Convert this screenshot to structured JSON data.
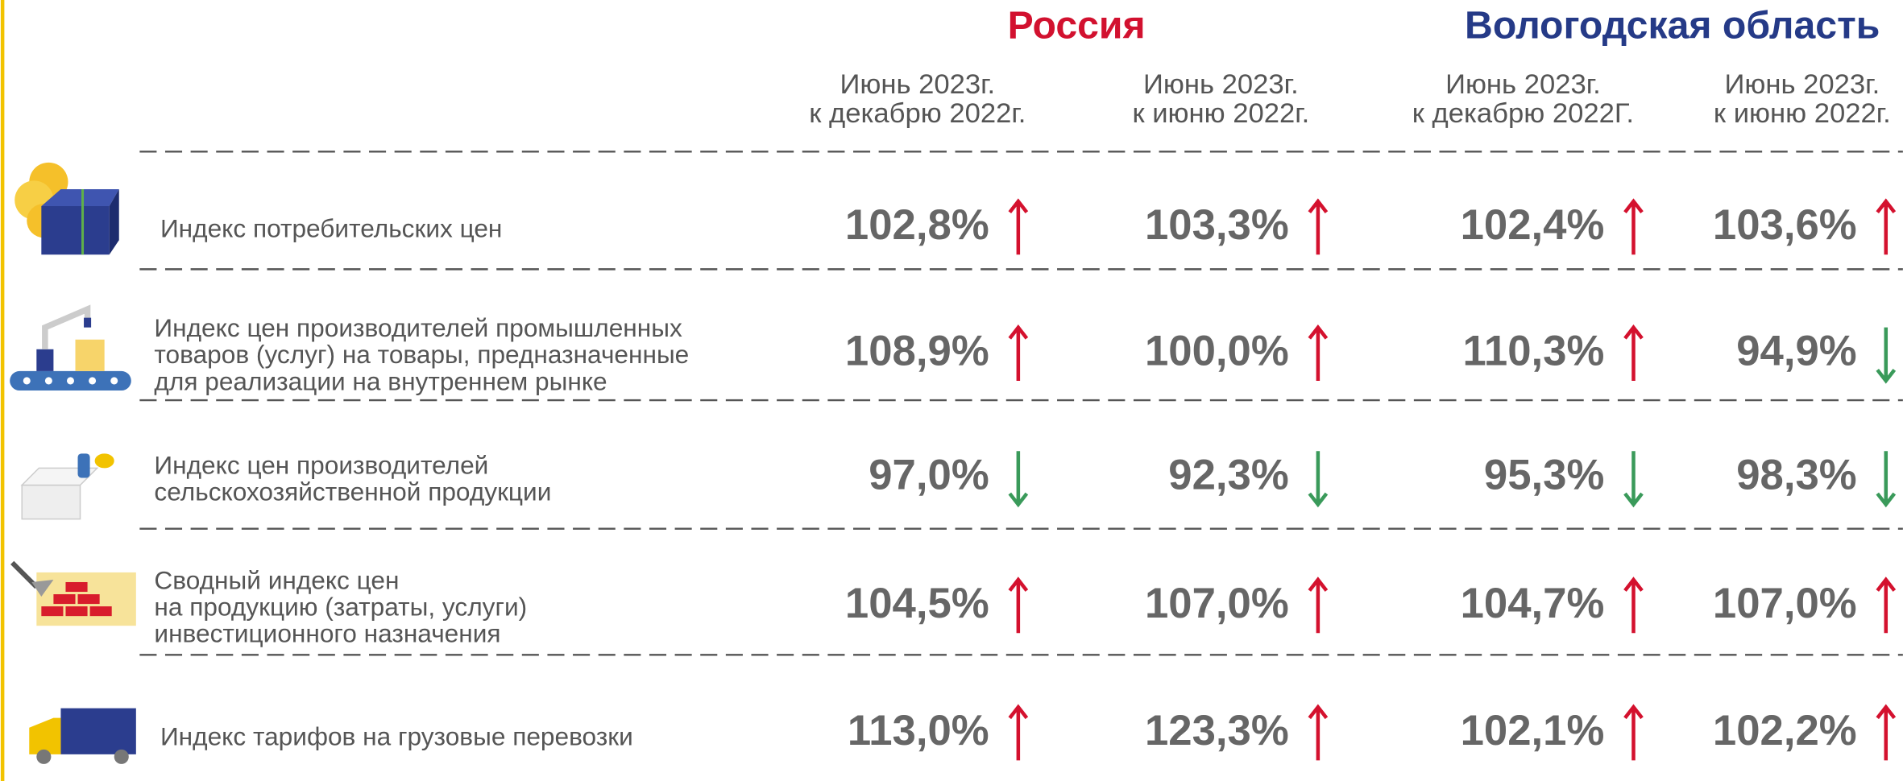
{
  "header": {
    "russia": "Россия",
    "region": "Вологодская область",
    "columns": [
      [
        "Июнь 2023г.",
        "к декабрю 2022г."
      ],
      [
        "Июнь 2023г.",
        "к июню 2022г."
      ],
      [
        "Июнь 2023г.",
        "к  декабрю 2022Г."
      ],
      [
        "Июнь 2023г.",
        "к июню 2022г."
      ]
    ]
  },
  "rows": [
    {
      "label": [
        "Индекс потребительских цен"
      ],
      "values": [
        "102,8%",
        "103,3%",
        "102,4%",
        "103,6%"
      ],
      "arrows": [
        "up",
        "up",
        "up",
        "up"
      ]
    },
    {
      "label": [
        "Индекс цен производителей промышленных",
        "товаров (услуг) на товары, предназначенные",
        "для реализации на внутреннем рынке"
      ],
      "values": [
        "108,9%",
        "100,0%",
        "110,3%",
        "94,9%"
      ],
      "arrows": [
        "up",
        "up",
        "up",
        "down"
      ]
    },
    {
      "label": [
        "Индекс цен производителей",
        "сельскохозяйственной продукции"
      ],
      "values": [
        "97,0%",
        "92,3%",
        "95,3%",
        "98,3%"
      ],
      "arrows": [
        "down",
        "down",
        "down",
        "down"
      ]
    },
    {
      "label": [
        "Сводный индекс цен",
        "на продукцию (затраты, услуги)",
        "инвестиционного назначения"
      ],
      "values": [
        "104,5%",
        "107,0%",
        "104,7%",
        "107,0%"
      ],
      "arrows": [
        "up",
        "up",
        "up",
        "up"
      ]
    },
    {
      "label": [
        "Индекс тарифов на грузовые перевозки"
      ],
      "values": [
        "113,0%",
        "123,3%",
        "102,1%",
        "102,2%"
      ],
      "arrows": [
        "up",
        "up",
        "up",
        "up"
      ]
    }
  ]
}
